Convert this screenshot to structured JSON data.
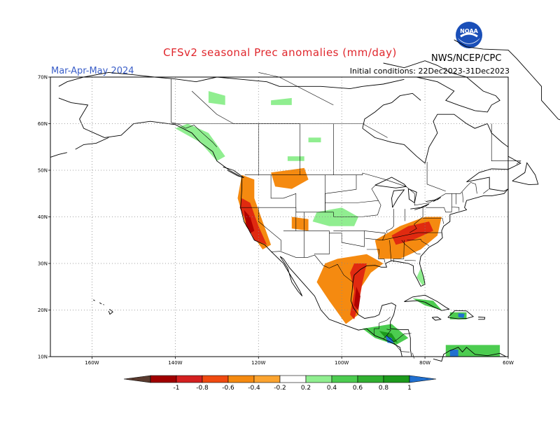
{
  "header": {
    "title": "CFSv2 seasonal Prec anomalies (mm/day)",
    "season": "Mar-Apr-May 2024",
    "initial_conditions": "Initial conditions: 22Dec2023-31Dec2023",
    "agency": "NWS/NCEP/CPC",
    "logo_text": "NOAA"
  },
  "map": {
    "lat_labels": [
      "70N",
      "60N",
      "50N",
      "40N",
      "30N",
      "20N",
      "10N"
    ],
    "lon_labels": [
      "160W",
      "140W",
      "120W",
      "100W",
      "80W",
      "60W"
    ],
    "lat_values": [
      70,
      60,
      50,
      40,
      30,
      20,
      10
    ],
    "lon_values": [
      -160,
      -140,
      -120,
      -100,
      -80,
      -60
    ],
    "extent": {
      "lon_min": -170,
      "lon_max": -60,
      "lat_min": 10,
      "lat_max": 70
    }
  },
  "colorbar": {
    "labels": [
      "-1",
      "-0.8",
      "-0.6",
      "-0.4",
      "-0.2",
      "0.2",
      "0.4",
      "0.6",
      "0.8",
      "1"
    ],
    "colors": [
      "#5a3a2e",
      "#a00000",
      "#d42020",
      "#f04a10",
      "#f58a10",
      "#fba430",
      "#ffffff",
      "#90ee90",
      "#4ccc50",
      "#30b030",
      "#1c9a1c",
      "#2070d0"
    ],
    "colors_meaning": "brown-to-orange = drier than normal, green-to-blue = wetter than normal"
  },
  "anomaly_colors": {
    "dry_strong": "#b00000",
    "dry_mid": "#e02a10",
    "dry_light": "#f58a10",
    "dry_faint": "#fbaa30",
    "wet_faint": "#90ee90",
    "wet_mid": "#4ccc50",
    "wet_strong": "#1c9a1c",
    "wet_max": "#2070d0"
  }
}
